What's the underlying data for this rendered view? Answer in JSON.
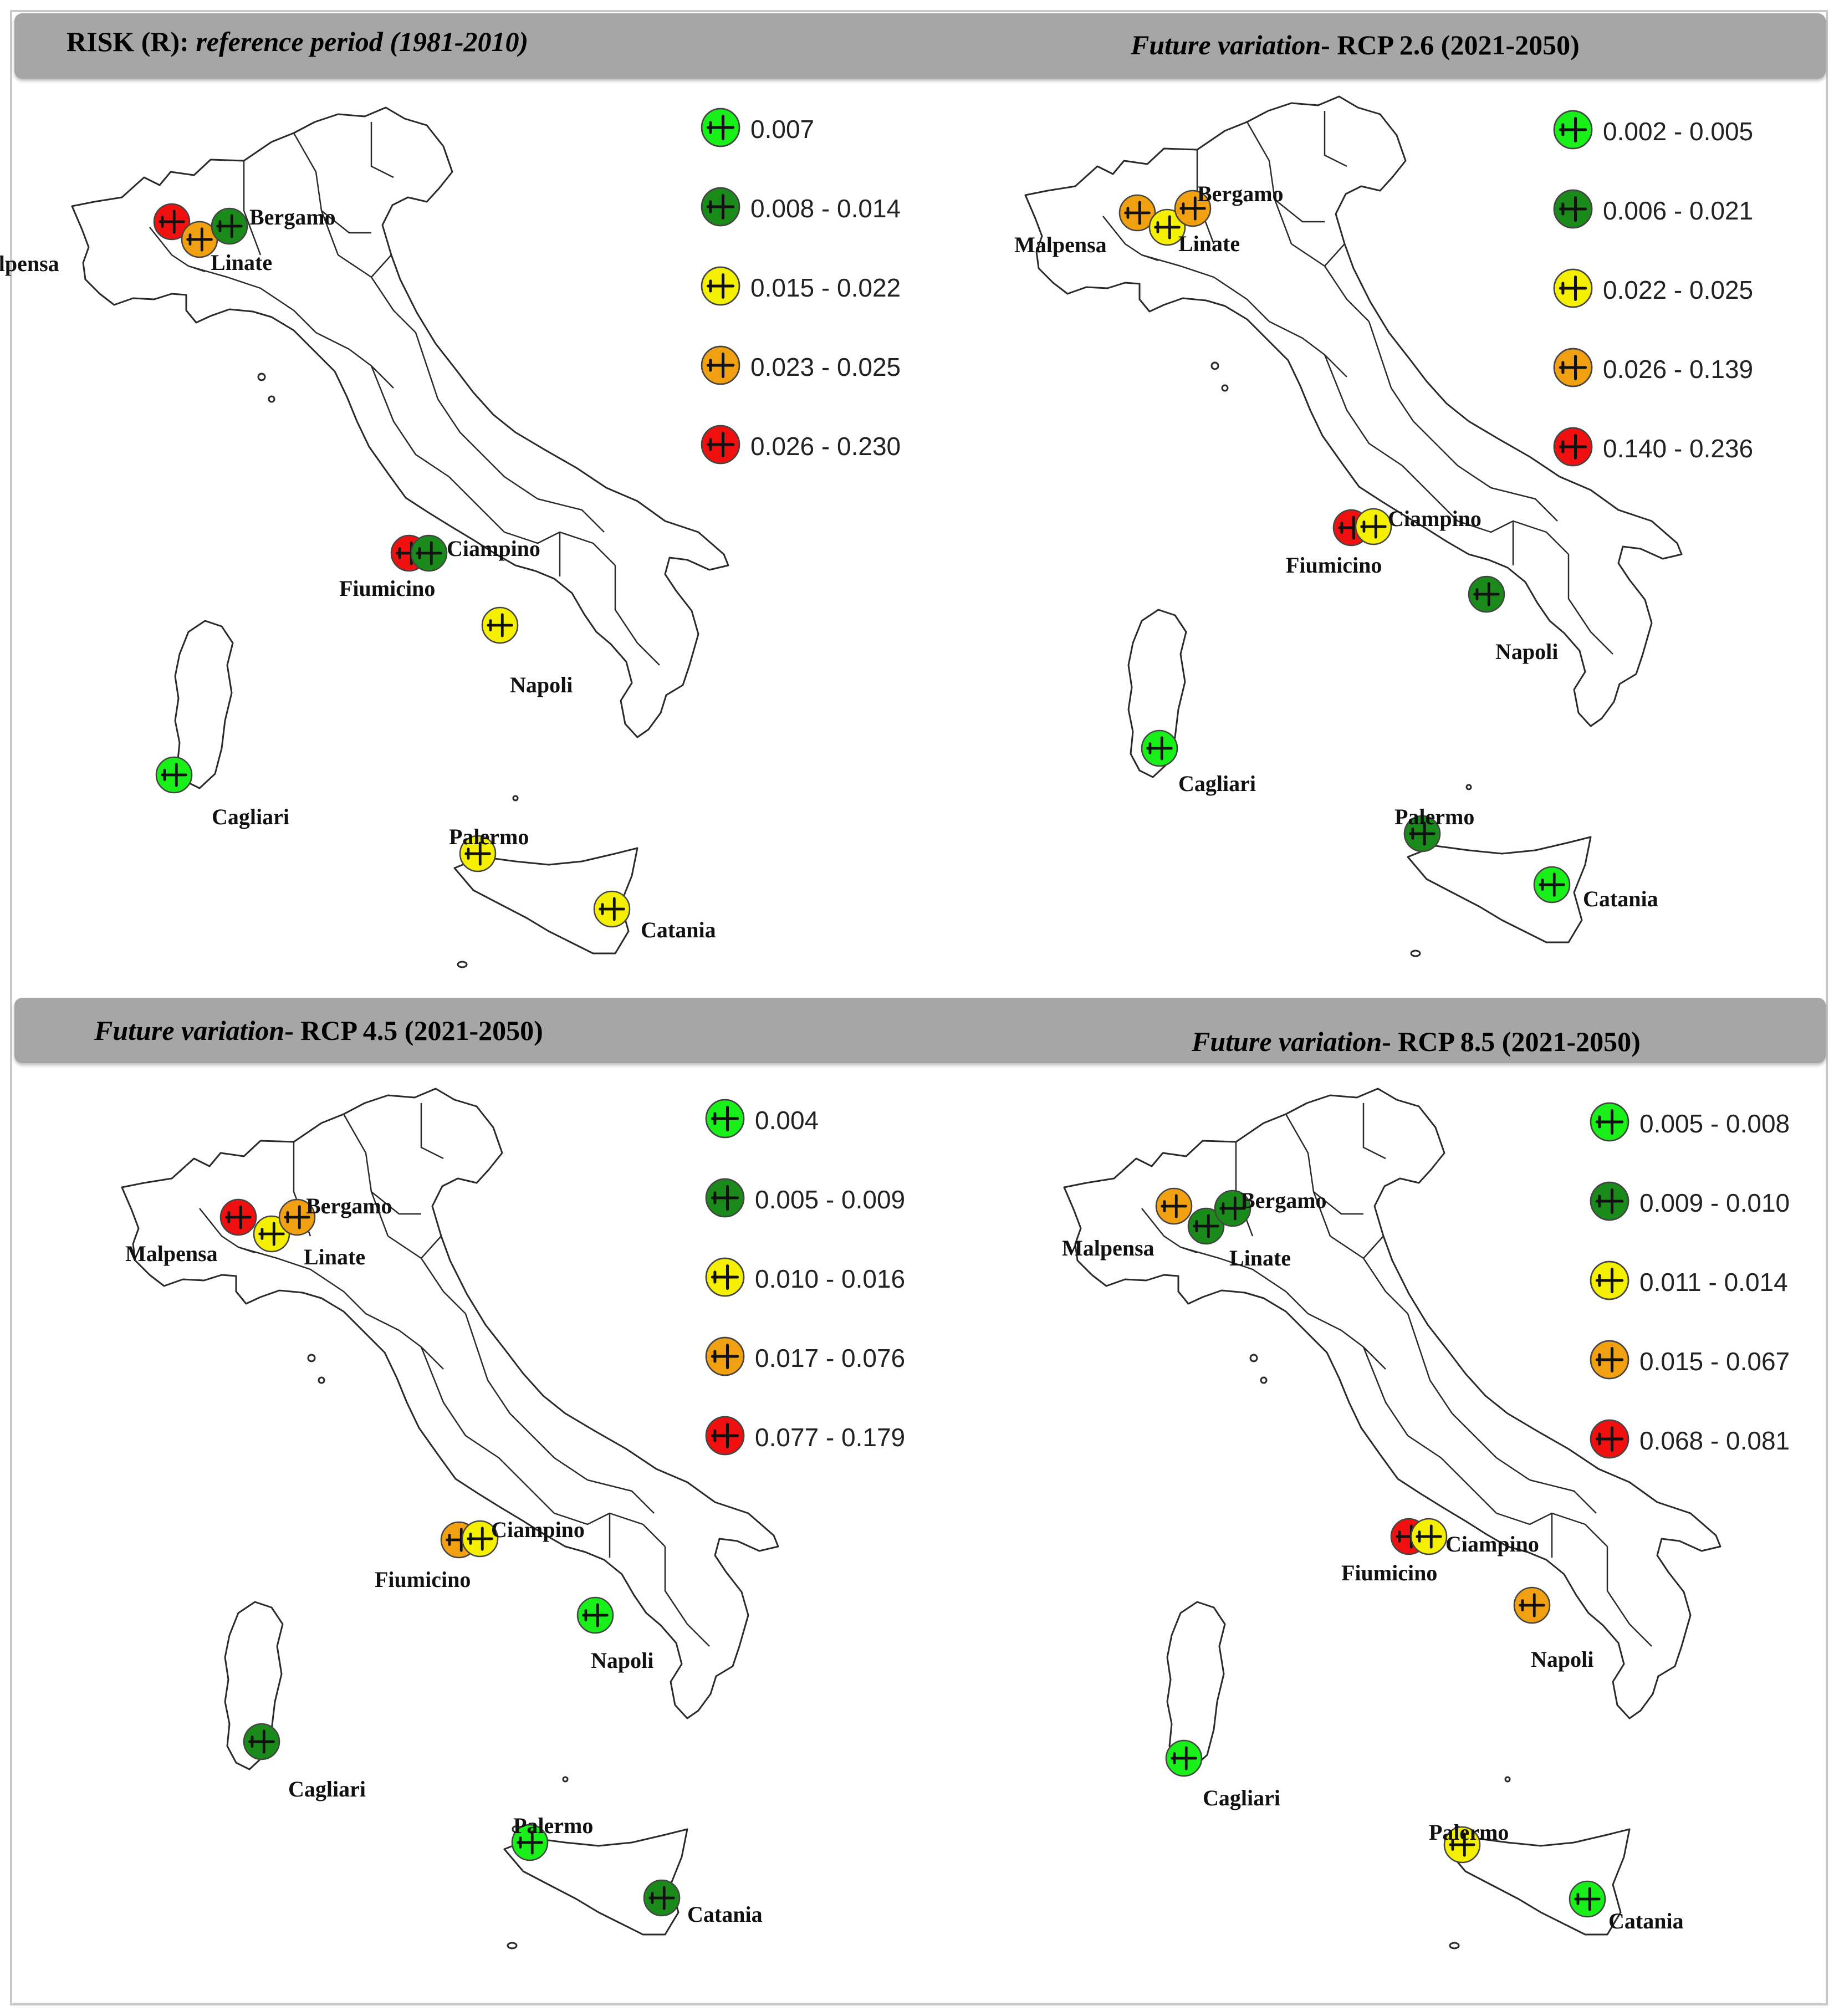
{
  "colors": {
    "light_green": "#19f019",
    "dark_green": "#1a8a1a",
    "yellow": "#f5f000",
    "orange": "#f0a010",
    "red": "#f01010",
    "header_band": "#a6a6a6"
  },
  "panels": [
    {
      "title_plain": "RISK (R): ",
      "title_italic": "reference period (1981-2010)",
      "title_after": "",
      "legend": [
        "0.007",
        "0.008 - 0.014",
        "0.015 - 0.022",
        "0.023 - 0.025",
        "0.026 - 0.230"
      ],
      "airports": [
        {
          "name": "Malpensa",
          "class": 5
        },
        {
          "name": "Linate",
          "class": 4
        },
        {
          "name": "Bergamo",
          "class": 2
        },
        {
          "name": "Fiumicino",
          "class": 5
        },
        {
          "name": "Ciampino",
          "class": 2
        },
        {
          "name": "Napoli",
          "class": 3
        },
        {
          "name": "Cagliari",
          "class": 1
        },
        {
          "name": "Palermo",
          "class": 3
        },
        {
          "name": "Catania",
          "class": 3
        }
      ]
    },
    {
      "title_plain": "",
      "title_italic": "Future variation",
      "title_after": "- RCP 2.6 (2021-2050)",
      "legend": [
        "0.002 - 0.005",
        "0.006 - 0.021",
        "0.022 - 0.025",
        "0.026 - 0.139",
        "0.140 - 0.236"
      ],
      "airports": [
        {
          "name": "Malpensa",
          "class": 4
        },
        {
          "name": "Linate",
          "class": 3
        },
        {
          "name": "Bergamo",
          "class": 4
        },
        {
          "name": "Fiumicino",
          "class": 5
        },
        {
          "name": "Ciampino",
          "class": 3
        },
        {
          "name": "Napoli",
          "class": 2
        },
        {
          "name": "Cagliari",
          "class": 1
        },
        {
          "name": "Palermo",
          "class": 2
        },
        {
          "name": "Catania",
          "class": 1
        }
      ]
    },
    {
      "title_plain": "",
      "title_italic": "Future variation",
      "title_after": "- RCP 4.5 (2021-2050)",
      "legend": [
        "0.004",
        "0.005 - 0.009",
        "0.010 - 0.016",
        "0.017 - 0.076",
        "0.077 - 0.179"
      ],
      "airports": [
        {
          "name": "Malpensa",
          "class": 5
        },
        {
          "name": "Linate",
          "class": 3
        },
        {
          "name": "Bergamo",
          "class": 4
        },
        {
          "name": "Fiumicino",
          "class": 4
        },
        {
          "name": "Ciampino",
          "class": 3
        },
        {
          "name": "Napoli",
          "class": 1
        },
        {
          "name": "Cagliari",
          "class": 2
        },
        {
          "name": "Palermo",
          "class": 1
        },
        {
          "name": "Catania",
          "class": 2
        }
      ]
    },
    {
      "title_plain": "",
      "title_italic": "Future variation",
      "title_after": "- RCP 8.5 (2021-2050)",
      "legend": [
        "0.005 - 0.008",
        "0.009 - 0.010",
        "0.011 - 0.014",
        "0.015 - 0.067",
        "0.068 - 0.081"
      ],
      "airports": [
        {
          "name": "Malpensa",
          "class": 4
        },
        {
          "name": "Linate",
          "class": 2
        },
        {
          "name": "Bergamo",
          "class": 2
        },
        {
          "name": "Fiumicino",
          "class": 5
        },
        {
          "name": "Ciampino",
          "class": 3
        },
        {
          "name": "Napoli",
          "class": 4
        },
        {
          "name": "Cagliari",
          "class": 1
        },
        {
          "name": "Palermo",
          "class": 3
        },
        {
          "name": "Catania",
          "class": 1
        }
      ]
    }
  ]
}
